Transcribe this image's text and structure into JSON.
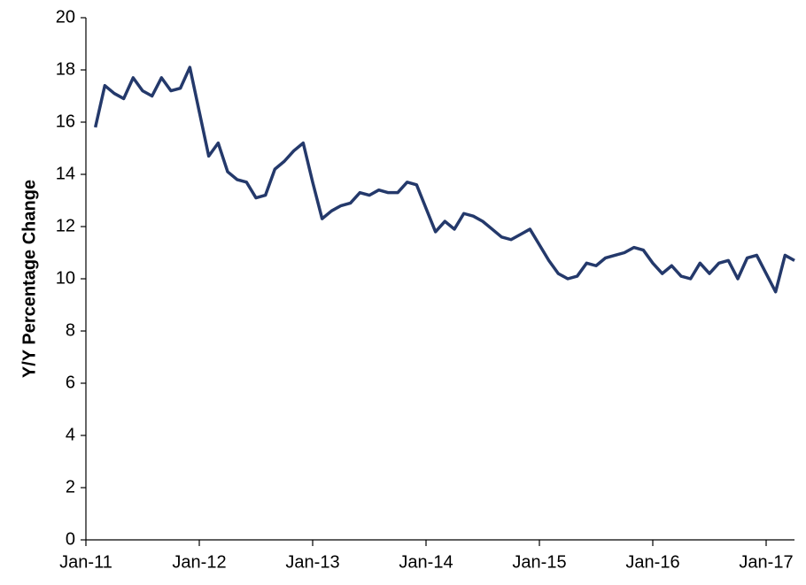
{
  "chart_data": {
    "type": "line",
    "y_label": "Y/Y Percentage Change",
    "categories": [
      "Jan-11",
      null,
      null,
      null,
      null,
      null,
      null,
      null,
      null,
      null,
      null,
      null,
      "Jan-12",
      null,
      null,
      null,
      null,
      null,
      null,
      null,
      null,
      null,
      null,
      null,
      "Jan-13",
      null,
      null,
      null,
      null,
      null,
      null,
      null,
      null,
      null,
      null,
      null,
      "Jan-14",
      null,
      null,
      null,
      null,
      null,
      null,
      null,
      null,
      null,
      null,
      null,
      "Jan-15",
      null,
      null,
      null,
      null,
      null,
      null,
      null,
      null,
      null,
      null,
      null,
      "Jan-16",
      null,
      null,
      null,
      null,
      null,
      null,
      null,
      null,
      null,
      null,
      null,
      "Jan-17",
      null,
      null,
      null
    ],
    "series": [
      {
        "color": "#24396b",
        "values": [
          null,
          15.8,
          17.4,
          17.1,
          16.9,
          17.7,
          17.2,
          17.0,
          17.7,
          17.2,
          17.3,
          18.1,
          16.4,
          14.7,
          15.2,
          14.1,
          13.8,
          13.7,
          13.1,
          13.2,
          14.2,
          14.5,
          14.9,
          15.2,
          13.7,
          12.3,
          12.6,
          12.8,
          12.9,
          13.3,
          13.2,
          13.4,
          13.3,
          13.3,
          13.7,
          13.6,
          12.7,
          11.8,
          12.2,
          11.9,
          12.5,
          12.4,
          12.2,
          11.9,
          11.6,
          11.5,
          11.7,
          11.9,
          11.3,
          10.7,
          10.2,
          10.0,
          10.1,
          10.6,
          10.5,
          10.8,
          10.9,
          11.0,
          11.2,
          11.1,
          10.6,
          10.2,
          10.5,
          10.1,
          10.0,
          10.6,
          10.2,
          10.6,
          10.7,
          10.0,
          10.8,
          10.9,
          10.2,
          9.5,
          10.9,
          10.7
        ]
      }
    ],
    "ylim": [
      0,
      20
    ],
    "yticks": [
      0,
      2,
      4,
      6,
      8,
      10,
      12,
      14,
      16,
      18,
      20
    ],
    "grid": false
  }
}
